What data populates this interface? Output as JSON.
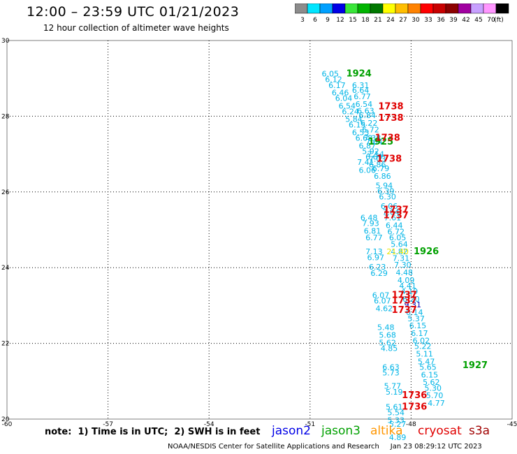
{
  "header": {
    "title": "12:00 – 23:59 UTC 01/21/2023",
    "subtitle": "12 hour collection of altimeter wave heights"
  },
  "colorbar": {
    "unit": "(ft)",
    "bins": [
      {
        "label": "3",
        "color": "#8c8c8c"
      },
      {
        "label": "6",
        "color": "#00e5ff"
      },
      {
        "label": "9",
        "color": "#00a0ff"
      },
      {
        "label": "12",
        "color": "#0000e6"
      },
      {
        "label": "15",
        "color": "#39e639"
      },
      {
        "label": "18",
        "color": "#00b400"
      },
      {
        "label": "21",
        "color": "#007800"
      },
      {
        "label": "24",
        "color": "#ffff00"
      },
      {
        "label": "27",
        "color": "#ffbe00"
      },
      {
        "label": "30",
        "color": "#ff8200"
      },
      {
        "label": "33",
        "color": "#ff0000"
      },
      {
        "label": "36",
        "color": "#c80000"
      },
      {
        "label": "39",
        "color": "#8c0000"
      },
      {
        "label": "42",
        "color": "#a000a0"
      },
      {
        "label": "45",
        "color": "#c8a0ff"
      },
      {
        "label": "70",
        "color": "#ff96ff"
      },
      {
        "label": "",
        "color": "#000000"
      }
    ]
  },
  "chart_data": {
    "type": "scatter",
    "title": "12:00 – 23:59 UTC 01/21/2023",
    "x_ticks": [
      "-60",
      "-57",
      "-54",
      "-51",
      "-48",
      "-45"
    ],
    "y_ticks": [
      "30",
      "28",
      "26",
      "24",
      "22",
      "20"
    ],
    "xlim": [
      -60,
      -45
    ],
    "ylim": [
      20,
      30
    ],
    "grid": true,
    "series": [
      {
        "name": "jason3",
        "color": "#00a000",
        "points": [
          {
            "lon": -50.4,
            "lat": 29.05,
            "v": "6.05"
          },
          {
            "lon": -50.3,
            "lat": 28.9,
            "v": "6.12"
          },
          {
            "lon": -50.2,
            "lat": 28.75,
            "v": "6.17"
          },
          {
            "lon": -50.1,
            "lat": 28.55,
            "v": "6.46"
          },
          {
            "lon": -50.0,
            "lat": 28.4,
            "v": "6.04"
          },
          {
            "lon": -49.9,
            "lat": 28.2,
            "v": "6.54"
          },
          {
            "lon": -49.8,
            "lat": 28.05,
            "v": "6.24"
          },
          {
            "lon": -49.7,
            "lat": 27.85,
            "v": "5.84"
          },
          {
            "lon": -49.6,
            "lat": 27.7,
            "v": "6.15"
          },
          {
            "lon": -49.5,
            "lat": 27.5,
            "v": "6.53"
          },
          {
            "lon": -49.4,
            "lat": 27.35,
            "v": "6.68"
          },
          {
            "lon": -49.3,
            "lat": 27.15,
            "v": "6.87"
          },
          {
            "lon": -49.2,
            "lat": 27.0,
            "v": "5.92"
          },
          {
            "lon": -49.1,
            "lat": 26.85,
            "v": "6.69"
          },
          {
            "lon": -49.0,
            "lat": 26.65,
            "v": "6.86"
          }
        ]
      },
      {
        "name": "jason3",
        "color": "#00a000",
        "points": [
          {
            "lon": -49.5,
            "lat": 28.75,
            "v": "6.31"
          },
          {
            "lon": -49.5,
            "lat": 28.62,
            "v": "6.64"
          },
          {
            "lon": -49.45,
            "lat": 28.45,
            "v": "6.77"
          },
          {
            "lon": -49.4,
            "lat": 28.25,
            "v": "6.54"
          },
          {
            "lon": -49.35,
            "lat": 28.07,
            "v": "6.63"
          },
          {
            "lon": -49.3,
            "lat": 27.95,
            "v": "6.84"
          },
          {
            "lon": -49.25,
            "lat": 27.75,
            "v": "6.22"
          },
          {
            "lon": -49.2,
            "lat": 27.57,
            "v": "6.72"
          },
          {
            "lon": -49.15,
            "lat": 27.35,
            "v": "7.38"
          },
          {
            "lon": -49.1,
            "lat": 27.25,
            "v": "7.64"
          },
          {
            "lon": -49.05,
            "lat": 26.93,
            "v": "7.14"
          },
          {
            "lon": -49.0,
            "lat": 26.8,
            "v": "7.03"
          }
        ]
      },
      {
        "name": "jason3",
        "color": "#00a000",
        "points": [
          {
            "lon": -48.9,
            "lat": 26.55,
            "v": "6.79"
          },
          {
            "lon": -48.85,
            "lat": 26.35,
            "v": "6.86"
          },
          {
            "lon": -48.8,
            "lat": 26.1,
            "v": "5.94"
          },
          {
            "lon": -48.75,
            "lat": 25.95,
            "v": "6.39"
          },
          {
            "lon": -48.7,
            "lat": 25.8,
            "v": "6.30"
          },
          {
            "lon": -48.65,
            "lat": 25.55,
            "v": "6.06"
          },
          {
            "lon": -48.6,
            "lat": 25.4,
            "v": "7.04"
          },
          {
            "lon": -48.55,
            "lat": 25.25,
            "v": "7.61"
          },
          {
            "lon": -48.5,
            "lat": 25.05,
            "v": "6.44"
          },
          {
            "lon": -48.45,
            "lat": 24.88,
            "v": "6.72"
          },
          {
            "lon": -48.4,
            "lat": 24.72,
            "v": "6.05"
          },
          {
            "lon": -48.35,
            "lat": 24.55,
            "v": "5.64"
          },
          {
            "lon": -48.35,
            "lat": 24.35,
            "v": "4.82"
          },
          {
            "lon": -48.3,
            "lat": 24.18,
            "v": "7.31"
          },
          {
            "lon": -48.25,
            "lat": 24.0,
            "v": "7.30"
          }
        ]
      },
      {
        "name": "jason3",
        "color": "#00a000",
        "points": [
          {
            "lon": -48.2,
            "lat": 23.8,
            "v": "4.48"
          },
          {
            "lon": -48.15,
            "lat": 23.6,
            "v": "4.09"
          },
          {
            "lon": -48.1,
            "lat": 23.45,
            "v": "4.41"
          },
          {
            "lon": -48.05,
            "lat": 23.3,
            "v": "4.19"
          },
          {
            "lon": -48.0,
            "lat": 23.1,
            "v": "6.20"
          },
          {
            "lon": -47.95,
            "lat": 22.95,
            "v": "9.31"
          },
          {
            "lon": -47.9,
            "lat": 22.75,
            "v": "6.14"
          },
          {
            "lon": -47.85,
            "lat": 22.58,
            "v": "5.37"
          },
          {
            "lon": -47.8,
            "lat": 22.4,
            "v": "6.15"
          },
          {
            "lon": -47.75,
            "lat": 22.2,
            "v": "6.17"
          },
          {
            "lon": -47.7,
            "lat": 22.0,
            "v": "6.02"
          },
          {
            "lon": -47.65,
            "lat": 21.85,
            "v": "5.22"
          },
          {
            "lon": -47.6,
            "lat": 21.65,
            "v": "5.11"
          },
          {
            "lon": -47.55,
            "lat": 21.45,
            "v": "5.47"
          },
          {
            "lon": -47.5,
            "lat": 21.3,
            "v": "5.65"
          },
          {
            "lon": -47.45,
            "lat": 21.1,
            "v": "6.15"
          },
          {
            "lon": -47.4,
            "lat": 20.9,
            "v": "5.62"
          },
          {
            "lon": -47.35,
            "lat": 20.75,
            "v": "5.30"
          },
          {
            "lon": -47.3,
            "lat": 20.55,
            "v": "5.70"
          },
          {
            "lon": -47.25,
            "lat": 20.35,
            "v": "4.77"
          }
        ]
      },
      {
        "name": "cryosat",
        "color": "#e00000",
        "points": [
          {
            "lon": -49.1,
            "lat": 24.35,
            "v": "7.13"
          },
          {
            "lon": -49.05,
            "lat": 24.2,
            "v": "6.97"
          },
          {
            "lon": -49.0,
            "lat": 23.95,
            "v": "6.23"
          },
          {
            "lon": -48.95,
            "lat": 23.78,
            "v": "6.29"
          },
          {
            "lon": -48.9,
            "lat": 23.2,
            "v": "6.07"
          },
          {
            "lon": -48.85,
            "lat": 23.05,
            "v": "6.07"
          },
          {
            "lon": -48.8,
            "lat": 22.85,
            "v": "4.62"
          },
          {
            "lon": -48.75,
            "lat": 22.35,
            "v": "5.48"
          },
          {
            "lon": -48.7,
            "lat": 22.15,
            "v": "5.68"
          },
          {
            "lon": -48.7,
            "lat": 21.95,
            "v": "5.62"
          },
          {
            "lon": -48.65,
            "lat": 21.8,
            "v": "4.85"
          },
          {
            "lon": -48.6,
            "lat": 21.3,
            "v": "6.63"
          },
          {
            "lon": -48.6,
            "lat": 21.15,
            "v": "5.73"
          },
          {
            "lon": -48.55,
            "lat": 20.8,
            "v": "5.77"
          },
          {
            "lon": -48.5,
            "lat": 20.65,
            "v": "5.19"
          },
          {
            "lon": -48.5,
            "lat": 20.25,
            "v": "5.61"
          },
          {
            "lon": -48.45,
            "lat": 20.1,
            "v": "5.54"
          },
          {
            "lon": -48.45,
            "lat": 19.9,
            "v": "5.33"
          },
          {
            "lon": -48.4,
            "lat": 19.8,
            "v": "5.27"
          },
          {
            "lon": -48.4,
            "lat": 19.45,
            "v": "4.89"
          }
        ]
      },
      {
        "name": "cryosat",
        "color": "#e00000",
        "points": [
          {
            "lon": -49.35,
            "lat": 26.72,
            "v": "7.41"
          },
          {
            "lon": -49.3,
            "lat": 26.5,
            "v": "6.06"
          },
          {
            "lon": -49.25,
            "lat": 25.25,
            "v": "6.48"
          },
          {
            "lon": -49.2,
            "lat": 25.1,
            "v": "7.93"
          },
          {
            "lon": -49.15,
            "lat": 24.9,
            "v": "6.81"
          },
          {
            "lon": -49.1,
            "lat": 24.72,
            "v": "6.77"
          }
        ]
      },
      {
        "name": "altika",
        "color": "#ffff00",
        "points": [
          {
            "lon": -48.4,
            "lat": 24.35,
            "v": "21.40"
          }
        ]
      }
    ],
    "time_labels": [
      {
        "text": "1924",
        "color": "#00a000",
        "lon": -49.55,
        "lat": 29.05
      },
      {
        "text": "1925",
        "color": "#00a000",
        "lon": -48.9,
        "lat": 27.25
      },
      {
        "text": "1926",
        "color": "#00a000",
        "lon": -47.55,
        "lat": 24.35
      },
      {
        "text": "1927",
        "color": "#00a000",
        "lon": -46.1,
        "lat": 21.35
      },
      {
        "text": "1738",
        "color": "#e00000",
        "lon": -48.6,
        "lat": 28.18
      },
      {
        "text": "1738",
        "color": "#e00000",
        "lon": -48.6,
        "lat": 27.88
      },
      {
        "text": "1738",
        "color": "#e00000",
        "lon": -48.7,
        "lat": 27.35
      },
      {
        "text": "1738",
        "color": "#e00000",
        "lon": -48.65,
        "lat": 26.8
      },
      {
        "text": "1737",
        "color": "#e00000",
        "lon": -48.45,
        "lat": 25.45
      },
      {
        "text": "1737",
        "color": "#e00000",
        "lon": -48.45,
        "lat": 25.3
      },
      {
        "text": "1737",
        "color": "#e00000",
        "lon": -48.2,
        "lat": 23.2
      },
      {
        "text": "1737",
        "color": "#e00000",
        "lon": -48.2,
        "lat": 23.05
      },
      {
        "text": "1737",
        "color": "#e00000",
        "lon": -48.2,
        "lat": 22.8
      },
      {
        "text": "1736",
        "color": "#e00000",
        "lon": -47.9,
        "lat": 20.55
      },
      {
        "text": "1736",
        "color": "#e00000",
        "lon": -47.9,
        "lat": 20.25
      }
    ]
  },
  "footer": {
    "note": "note:  1) Time is in UTC;  2) SWH is in feet",
    "credit": "NOAA/NESDIS Center for Satellite Applications and Research     Jan 23 08:29:12 UTC 2023",
    "legend": [
      {
        "label": "jason2",
        "color": "#0000e6"
      },
      {
        "label": "jason3",
        "color": "#00a000"
      },
      {
        "label": "altika",
        "color": "#ff9600"
      },
      {
        "label": "cryosat",
        "color": "#e00000"
      },
      {
        "label": "s3a",
        "color": "#a00000"
      }
    ]
  }
}
